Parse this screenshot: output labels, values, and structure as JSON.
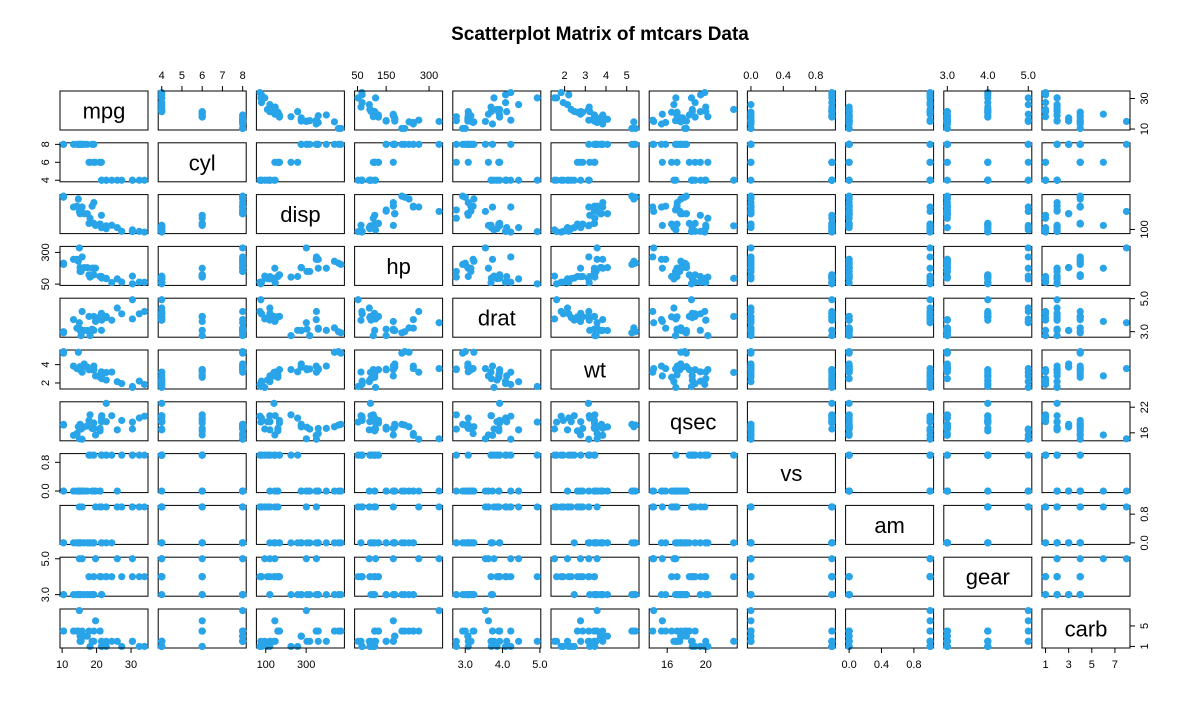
{
  "colors": {
    "point": "#2aa4e8",
    "frame": "#000000",
    "background": "#ffffff"
  },
  "chart_data": {
    "type": "scatter",
    "title": "Scatterplot Matrix of mtcars Data",
    "variables": [
      "mpg",
      "cyl",
      "disp",
      "hp",
      "drat",
      "wt",
      "qsec",
      "vs",
      "am",
      "gear",
      "carb"
    ],
    "ranges": {
      "mpg": [
        10.4,
        33.9
      ],
      "cyl": [
        4,
        8
      ],
      "disp": [
        71.1,
        472
      ],
      "hp": [
        52,
        335
      ],
      "drat": [
        2.76,
        4.93
      ],
      "wt": [
        1.513,
        5.424
      ],
      "qsec": [
        14.5,
        22.9
      ],
      "vs": [
        0,
        1
      ],
      "am": [
        0,
        1
      ],
      "gear": [
        3,
        5
      ],
      "carb": [
        1,
        8
      ]
    },
    "axes": {
      "top": [
        {
          "var": "cyl",
          "ticks": [
            4,
            5,
            6,
            7,
            8
          ],
          "labels": [
            "4",
            "5",
            "6",
            "7",
            "8"
          ]
        },
        {
          "var": "hp",
          "ticks": [
            50,
            150,
            300
          ],
          "labels": [
            "50",
            "150",
            "300"
          ]
        },
        {
          "var": "wt",
          "ticks": [
            2,
            3,
            4,
            5
          ],
          "labels": [
            "2",
            "3",
            "4",
            "5"
          ]
        },
        {
          "var": "vs",
          "ticks": [
            0,
            0.4,
            0.8
          ],
          "labels": [
            "0.0",
            "0.4",
            "0.8"
          ]
        },
        {
          "var": "gear",
          "ticks": [
            3,
            4,
            5
          ],
          "labels": [
            "3.0",
            "4.0",
            "5.0"
          ]
        }
      ],
      "bottom": [
        {
          "var": "mpg",
          "ticks": [
            10,
            20,
            30
          ],
          "labels": [
            "10",
            "20",
            "30"
          ]
        },
        {
          "var": "disp",
          "ticks": [
            100,
            300
          ],
          "labels": [
            "100",
            "300"
          ]
        },
        {
          "var": "drat",
          "ticks": [
            3,
            4,
            5
          ],
          "labels": [
            "3.0",
            "4.0",
            "5.0"
          ]
        },
        {
          "var": "qsec",
          "ticks": [
            16,
            20
          ],
          "labels": [
            "16",
            "20"
          ]
        },
        {
          "var": "am",
          "ticks": [
            0,
            0.4,
            0.8
          ],
          "labels": [
            "0.0",
            "0.4",
            "0.8"
          ]
        },
        {
          "var": "carb",
          "ticks": [
            1,
            3,
            5,
            7
          ],
          "labels": [
            "1",
            "3",
            "5",
            "7"
          ]
        }
      ],
      "left": [
        {
          "var": "cyl",
          "ticks": [
            4,
            6,
            8
          ],
          "labels": [
            "4",
            "6",
            "8"
          ]
        },
        {
          "var": "hp",
          "ticks": [
            50,
            300
          ],
          "labels": [
            "50",
            "300"
          ]
        },
        {
          "var": "wt",
          "ticks": [
            2,
            4
          ],
          "labels": [
            "2",
            "4"
          ]
        },
        {
          "var": "vs",
          "ticks": [
            0,
            0.8
          ],
          "labels": [
            "0.0",
            "0.8"
          ]
        },
        {
          "var": "gear",
          "ticks": [
            3,
            5
          ],
          "labels": [
            "3.0",
            "5.0"
          ]
        }
      ],
      "right": [
        {
          "var": "mpg",
          "ticks": [
            10,
            30
          ],
          "labels": [
            "10",
            "30"
          ]
        },
        {
          "var": "disp",
          "ticks": [
            100
          ],
          "labels": [
            "100"
          ]
        },
        {
          "var": "drat",
          "ticks": [
            3,
            5
          ],
          "labels": [
            "3.0",
            "5.0"
          ]
        },
        {
          "var": "qsec",
          "ticks": [
            16,
            22
          ],
          "labels": [
            "16",
            "22"
          ]
        },
        {
          "var": "am",
          "ticks": [
            0,
            0.8
          ],
          "labels": [
            "0.0",
            "0.8"
          ]
        },
        {
          "var": "carb",
          "ticks": [
            1,
            5
          ],
          "labels": [
            "1",
            "5"
          ]
        }
      ]
    },
    "rows": [
      [
        21.0,
        6,
        160.0,
        110,
        3.9,
        2.62,
        16.46,
        0,
        1,
        4,
        4
      ],
      [
        21.0,
        6,
        160.0,
        110,
        3.9,
        2.875,
        17.02,
        0,
        1,
        4,
        4
      ],
      [
        22.8,
        4,
        108.0,
        93,
        3.85,
        2.32,
        18.61,
        1,
        1,
        4,
        1
      ],
      [
        21.4,
        6,
        258.0,
        110,
        3.08,
        3.215,
        19.44,
        1,
        0,
        3,
        1
      ],
      [
        18.7,
        8,
        360.0,
        175,
        3.15,
        3.44,
        17.02,
        0,
        0,
        3,
        2
      ],
      [
        18.1,
        6,
        225.0,
        105,
        2.76,
        3.46,
        20.22,
        1,
        0,
        3,
        1
      ],
      [
        14.3,
        8,
        360.0,
        245,
        3.21,
        3.57,
        15.84,
        0,
        0,
        3,
        4
      ],
      [
        24.4,
        4,
        146.7,
        62,
        3.69,
        3.19,
        20.0,
        1,
        0,
        4,
        2
      ],
      [
        22.8,
        4,
        140.8,
        95,
        3.92,
        3.15,
        22.9,
        1,
        0,
        4,
        2
      ],
      [
        19.2,
        6,
        167.6,
        123,
        3.92,
        3.44,
        18.3,
        1,
        0,
        4,
        4
      ],
      [
        17.8,
        6,
        167.6,
        123,
        3.92,
        3.44,
        18.9,
        1,
        0,
        4,
        4
      ],
      [
        16.4,
        8,
        275.8,
        180,
        3.07,
        4.07,
        17.4,
        0,
        0,
        3,
        3
      ],
      [
        17.3,
        8,
        275.8,
        180,
        3.07,
        3.73,
        17.6,
        0,
        0,
        3,
        3
      ],
      [
        15.2,
        8,
        275.8,
        180,
        3.07,
        3.78,
        18.0,
        0,
        0,
        3,
        3
      ],
      [
        10.4,
        8,
        472.0,
        205,
        2.93,
        5.25,
        17.98,
        0,
        0,
        3,
        4
      ],
      [
        10.4,
        8,
        460.0,
        215,
        3.0,
        5.424,
        17.82,
        0,
        0,
        3,
        4
      ],
      [
        14.7,
        8,
        440.0,
        230,
        3.23,
        5.345,
        17.42,
        0,
        0,
        3,
        4
      ],
      [
        32.4,
        4,
        78.7,
        66,
        4.08,
        2.2,
        19.47,
        1,
        1,
        4,
        1
      ],
      [
        30.4,
        4,
        75.7,
        52,
        4.93,
        1.615,
        18.52,
        1,
        1,
        4,
        2
      ],
      [
        33.9,
        4,
        71.1,
        65,
        4.22,
        1.835,
        19.9,
        1,
        1,
        4,
        1
      ],
      [
        21.5,
        4,
        120.1,
        97,
        3.7,
        2.465,
        20.01,
        1,
        0,
        3,
        1
      ],
      [
        15.5,
        8,
        318.0,
        150,
        2.76,
        3.52,
        16.87,
        0,
        0,
        3,
        2
      ],
      [
        15.2,
        8,
        304.0,
        150,
        3.15,
        3.435,
        17.3,
        0,
        0,
        3,
        2
      ],
      [
        13.3,
        8,
        350.0,
        245,
        3.73,
        3.84,
        15.41,
        0,
        0,
        3,
        4
      ],
      [
        19.2,
        8,
        400.0,
        175,
        3.08,
        3.845,
        17.05,
        0,
        0,
        3,
        2
      ],
      [
        27.3,
        4,
        79.0,
        66,
        4.08,
        1.935,
        18.9,
        1,
        1,
        4,
        1
      ],
      [
        26.0,
        4,
        120.3,
        91,
        4.43,
        2.14,
        16.7,
        0,
        1,
        5,
        2
      ],
      [
        30.4,
        4,
        95.1,
        113,
        3.77,
        1.513,
        16.9,
        1,
        1,
        5,
        2
      ],
      [
        15.8,
        8,
        351.0,
        264,
        4.22,
        3.17,
        14.5,
        0,
        1,
        5,
        4
      ],
      [
        19.7,
        6,
        145.0,
        175,
        3.62,
        2.77,
        15.5,
        0,
        1,
        5,
        6
      ],
      [
        15.0,
        8,
        301.0,
        335,
        3.54,
        3.57,
        14.6,
        0,
        1,
        5,
        8
      ],
      [
        21.4,
        4,
        121.0,
        109,
        4.11,
        2.78,
        18.6,
        1,
        1,
        4,
        2
      ]
    ]
  }
}
